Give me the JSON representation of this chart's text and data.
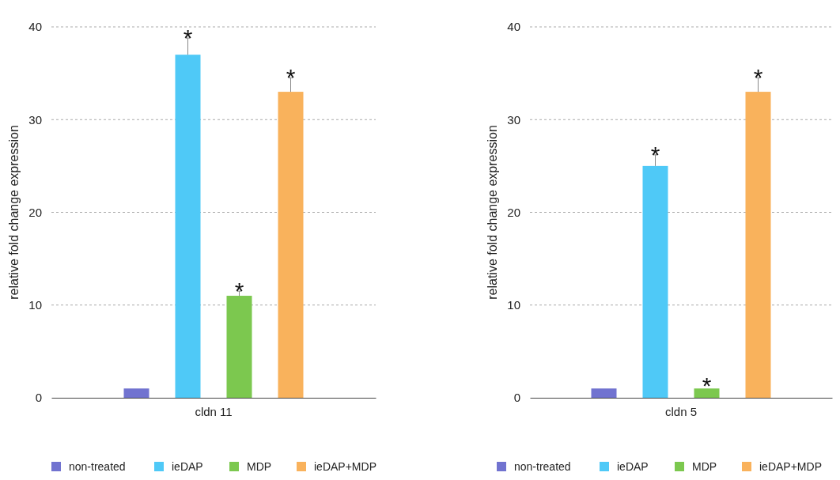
{
  "chart_data": [
    {
      "type": "bar",
      "ylabel": "relative fold change expression",
      "categories": [
        "cldn 11"
      ],
      "ylim": [
        0,
        40
      ],
      "yticks": [
        0,
        10,
        20,
        30,
        40
      ],
      "grid": "y",
      "legend": "bottom",
      "series": [
        {
          "name": "non-treated",
          "color": "#7173d0",
          "values": [
            1
          ],
          "errors": [
            null
          ]
        },
        {
          "name": "ieDAP",
          "color": "#4fc9f7",
          "values": [
            37
          ],
          "errors": [
            1.8
          ]
        },
        {
          "name": "MDP",
          "color": "#7cc84f",
          "values": [
            11
          ],
          "errors": [
            0.5
          ]
        },
        {
          "name": "ieDAP+MDP",
          "color": "#f9b25c",
          "values": [
            33
          ],
          "errors": [
            1.5
          ]
        }
      ],
      "annotations": [
        "*",
        "*",
        "*"
      ]
    },
    {
      "type": "bar",
      "ylabel": "relative fold change expression",
      "categories": [
        "cldn 5"
      ],
      "ylim": [
        0,
        40
      ],
      "yticks": [
        0,
        10,
        20,
        30,
        40
      ],
      "grid": "y",
      "legend": "bottom",
      "series": [
        {
          "name": "non-treated",
          "color": "#7173d0",
          "values": [
            1
          ],
          "errors": [
            null
          ]
        },
        {
          "name": "ieDAP",
          "color": "#4fc9f7",
          "values": [
            25
          ],
          "errors": [
            1.2
          ]
        },
        {
          "name": "MDP",
          "color": "#7cc84f",
          "values": [
            1
          ],
          "errors": [
            null
          ]
        },
        {
          "name": "ieDAP+MDP",
          "color": "#f9b25c",
          "values": [
            33
          ],
          "errors": [
            1.5
          ]
        }
      ],
      "annotations": [
        "*",
        "*",
        "*"
      ]
    }
  ]
}
